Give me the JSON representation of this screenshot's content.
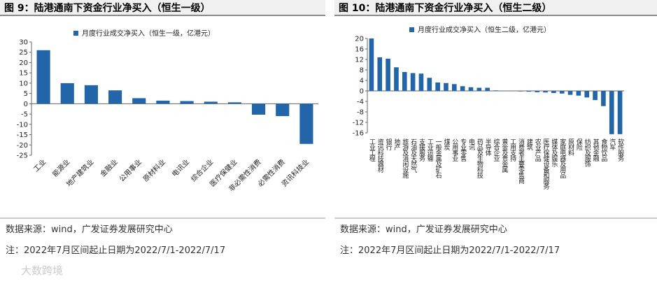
{
  "chart_data": [
    {
      "type": "bar",
      "title": "图 9：陆港通南下资金行业净买入（恒生一级）",
      "categories": [
        "工业",
        "能源业",
        "地产建筑业",
        "金融业",
        "公用事业",
        "原材料业",
        "电讯业",
        "综合企业",
        "医疗保健业",
        "非必需性消费",
        "必需性消费",
        "资讯科技业"
      ],
      "series": [
        {
          "name": "月度行业成交净买入（恒生一级，亿港元）",
          "color": "#2265a8",
          "values": [
            26,
            10,
            9,
            6.5,
            2.7,
            1.5,
            1.3,
            1,
            0.7,
            -5.3,
            -6,
            -19.5
          ]
        }
      ],
      "ylim": [
        -25,
        30
      ],
      "yticks": [
        30,
        25,
        20,
        15,
        10,
        5,
        0,
        -5,
        -10,
        -15,
        -20,
        -25
      ]
    },
    {
      "type": "bar",
      "title": "图 10：陆港通南下资金行业净买入（恒生二级）",
      "categories": [
        "工业工程",
        "资讯科技器材",
        "银行",
        "地产",
        "旅游及消闲设施",
        "石油及天然气",
        "支援服务",
        "工业运输",
        "一般金属及矿石",
        "煤炭",
        "公用事业",
        "专业零售",
        "电讯",
        "药品及生物科技",
        "半导体",
        "综合企业",
        "黄金及贵金属",
        "工用支持",
        "消费者主要零售商",
        "建筑",
        "农业产品",
        "医疗保健设备和服务",
        "媒体及娱乐",
        "家庭电器及用品",
        "原材料",
        "保险",
        "纺织及服饰",
        "其他金融",
        "食物饮品",
        "汽车",
        "软件服务"
      ],
      "series": [
        {
          "name": "月度行业成交净买入（恒生二级，亿港元）",
          "color": "#2265a8",
          "values": [
            20,
            12.8,
            12.3,
            9,
            7.2,
            6.8,
            6.6,
            5,
            3.2,
            3,
            2.6,
            1.8,
            1.4,
            1.2,
            1.2,
            0.2,
            0.1,
            -0.1,
            -0.2,
            -0.3,
            -0.5,
            -0.6,
            -0.8,
            -1,
            -1.5,
            -1.8,
            -2.5,
            -3.5,
            -5.8,
            -16.5,
            -16.5
          ]
        }
      ],
      "ylim": [
        -16,
        20
      ],
      "yticks": [
        20,
        16,
        12,
        8,
        4,
        0,
        -4,
        -8,
        -12,
        -16
      ]
    }
  ],
  "footer": {
    "source": "数据来源：wind，广发证券发展研究中心",
    "note": "注：2022年7月区间起止日期为2022/7/1-2022/7/17",
    "watermark": "大数跨境"
  }
}
